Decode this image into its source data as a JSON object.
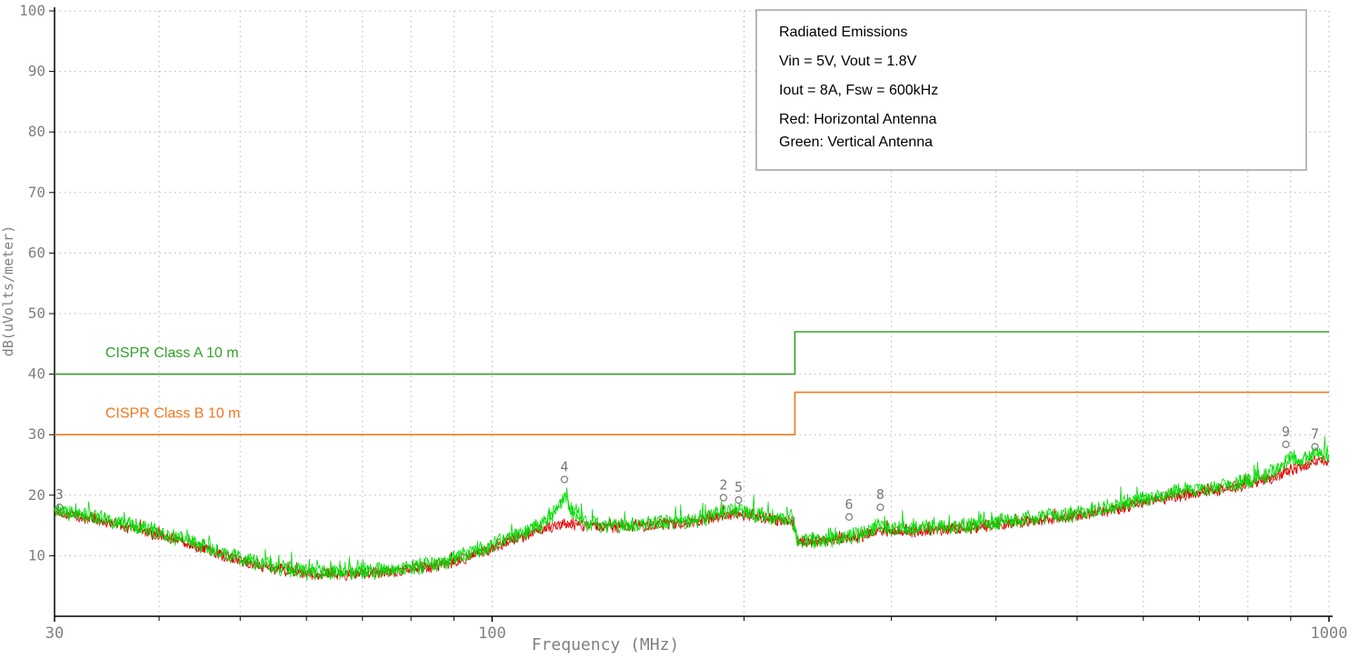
{
  "chart_data": {
    "type": "line",
    "title": "Radiated Emissions",
    "xlabel": "Frequency (MHz)",
    "ylabel": "dB(uVolts/meter)",
    "x_scale": "log",
    "xlim": [
      30,
      1000
    ],
    "ylim": [
      0,
      100
    ],
    "x_tick_labels": [
      {
        "value": 30,
        "label": "30"
      },
      {
        "value": 100,
        "label": "100"
      },
      {
        "value": 1000,
        "label": "1000"
      }
    ],
    "y_ticks": [
      10,
      20,
      30,
      40,
      50,
      60,
      70,
      80,
      90,
      100
    ],
    "x_grid": [
      40,
      50,
      60,
      70,
      80,
      90,
      100,
      200,
      300,
      400,
      500,
      600,
      700,
      800,
      900,
      1000
    ],
    "grid_style": "dashed",
    "limit_lines": [
      {
        "name": "cispr-class-a-limit",
        "label": "CISPR  Class A  10 m",
        "color": "#33a02c",
        "points": [
          [
            30,
            40
          ],
          [
            230,
            40
          ],
          [
            230,
            47
          ],
          [
            1000,
            47
          ]
        ],
        "label_freq": 34.5,
        "label_level": 42.8
      },
      {
        "name": "cispr-class-b-limit",
        "label": "CISPR  Class B  10 m",
        "color": "#f07820",
        "points": [
          [
            30,
            30
          ],
          [
            230,
            30
          ],
          [
            230,
            37
          ],
          [
            1000,
            37
          ]
        ],
        "label_freq": 34.5,
        "label_level": 32.8
      }
    ],
    "series": [
      {
        "name": "Horizontal Antenna",
        "color": "#e00000",
        "noise_db": 1.1,
        "spike_db": 1.2,
        "envelope": {
          "freq": [
            30,
            34,
            38,
            42,
            46,
            50,
            55,
            60,
            65,
            70,
            75,
            80,
            85,
            90,
            100,
            108,
            115,
            120,
            122,
            125,
            130,
            140,
            150,
            160,
            170,
            180,
            188,
            195,
            202,
            210,
            220,
            228,
            232,
            245,
            260,
            275,
            290,
            300,
            320,
            350,
            380,
            420,
            460,
            500,
            550,
            600,
            650,
            700,
            750,
            800,
            850,
            880,
            900,
            930,
            960,
            1000
          ],
          "level": [
            17.3,
            15.8,
            14.2,
            12.6,
            10.8,
            9.2,
            7.9,
            7.1,
            6.9,
            7.1,
            7.3,
            7.7,
            8.3,
            9.0,
            11.2,
            13.0,
            14.4,
            15.2,
            15.4,
            15.2,
            15.0,
            14.8,
            15.0,
            15.2,
            15.4,
            16.0,
            16.6,
            17.0,
            16.8,
            16.2,
            16.0,
            15.8,
            12.4,
            12.4,
            12.8,
            13.2,
            14.2,
            14.0,
            14.0,
            14.4,
            14.8,
            15.4,
            16.0,
            16.6,
            17.6,
            18.8,
            19.8,
            20.4,
            21.0,
            21.8,
            22.8,
            23.6,
            24.4,
            24.6,
            25.6,
            25.8
          ]
        }
      },
      {
        "name": "Vertical Antenna",
        "color": "#00dc00",
        "noise_db": 1.5,
        "spike_db": 2.2,
        "envelope": {
          "freq": [
            30,
            34,
            38,
            42,
            46,
            50,
            55,
            60,
            65,
            70,
            75,
            80,
            85,
            90,
            100,
            108,
            115,
            120,
            122,
            125,
            130,
            140,
            150,
            160,
            170,
            180,
            188,
            195,
            202,
            210,
            220,
            228,
            232,
            245,
            260,
            275,
            290,
            300,
            320,
            350,
            380,
            420,
            460,
            500,
            550,
            600,
            650,
            700,
            750,
            800,
            850,
            880,
            900,
            930,
            960,
            1000
          ],
          "level": [
            17.5,
            16.2,
            14.6,
            13.0,
            11.2,
            9.6,
            8.2,
            7.4,
            7.2,
            7.4,
            7.6,
            8.0,
            8.6,
            9.4,
            11.8,
            13.6,
            15.2,
            18.0,
            20.0,
            17.0,
            15.4,
            15.0,
            15.2,
            15.4,
            15.6,
            16.2,
            17.2,
            17.6,
            17.2,
            16.4,
            16.2,
            16.0,
            12.6,
            12.6,
            13.0,
            13.6,
            15.0,
            14.6,
            14.4,
            14.8,
            15.2,
            15.8,
            16.4,
            17.0,
            18.0,
            19.4,
            20.4,
            21.0,
            21.6,
            22.4,
            23.6,
            25.0,
            26.2,
            25.6,
            27.0,
            26.4
          ]
        }
      }
    ],
    "markers": [
      {
        "label": "3",
        "freq": 30.4,
        "level": 18.0
      },
      {
        "label": "4",
        "freq": 122,
        "level": 22.6
      },
      {
        "label": "2",
        "freq": 189,
        "level": 19.6
      },
      {
        "label": "5",
        "freq": 197,
        "level": 19.2
      },
      {
        "label": "6",
        "freq": 267,
        "level": 16.4
      },
      {
        "label": "8",
        "freq": 291,
        "level": 18.0
      },
      {
        "label": "9",
        "freq": 888,
        "level": 28.4
      },
      {
        "label": "7",
        "freq": 962,
        "level": 28.0
      }
    ]
  },
  "legend_box": {
    "lines": [
      "Radiated Emissions",
      "Vin = 5V,  Vout = 1.8V",
      "Iout = 8A,  Fsw = 600kHz",
      "Red: Horizontal Antenna",
      "Green: Vertical Antenna"
    ]
  },
  "colors": {
    "red_trace": "#e00000",
    "green_trace": "#00dc00",
    "class_a_limit": "#33a02c",
    "class_b_limit": "#f07820",
    "axis_text": "#808080",
    "axis_line": "#000000",
    "grid": "#b4b4b4",
    "marker": "#787878"
  }
}
